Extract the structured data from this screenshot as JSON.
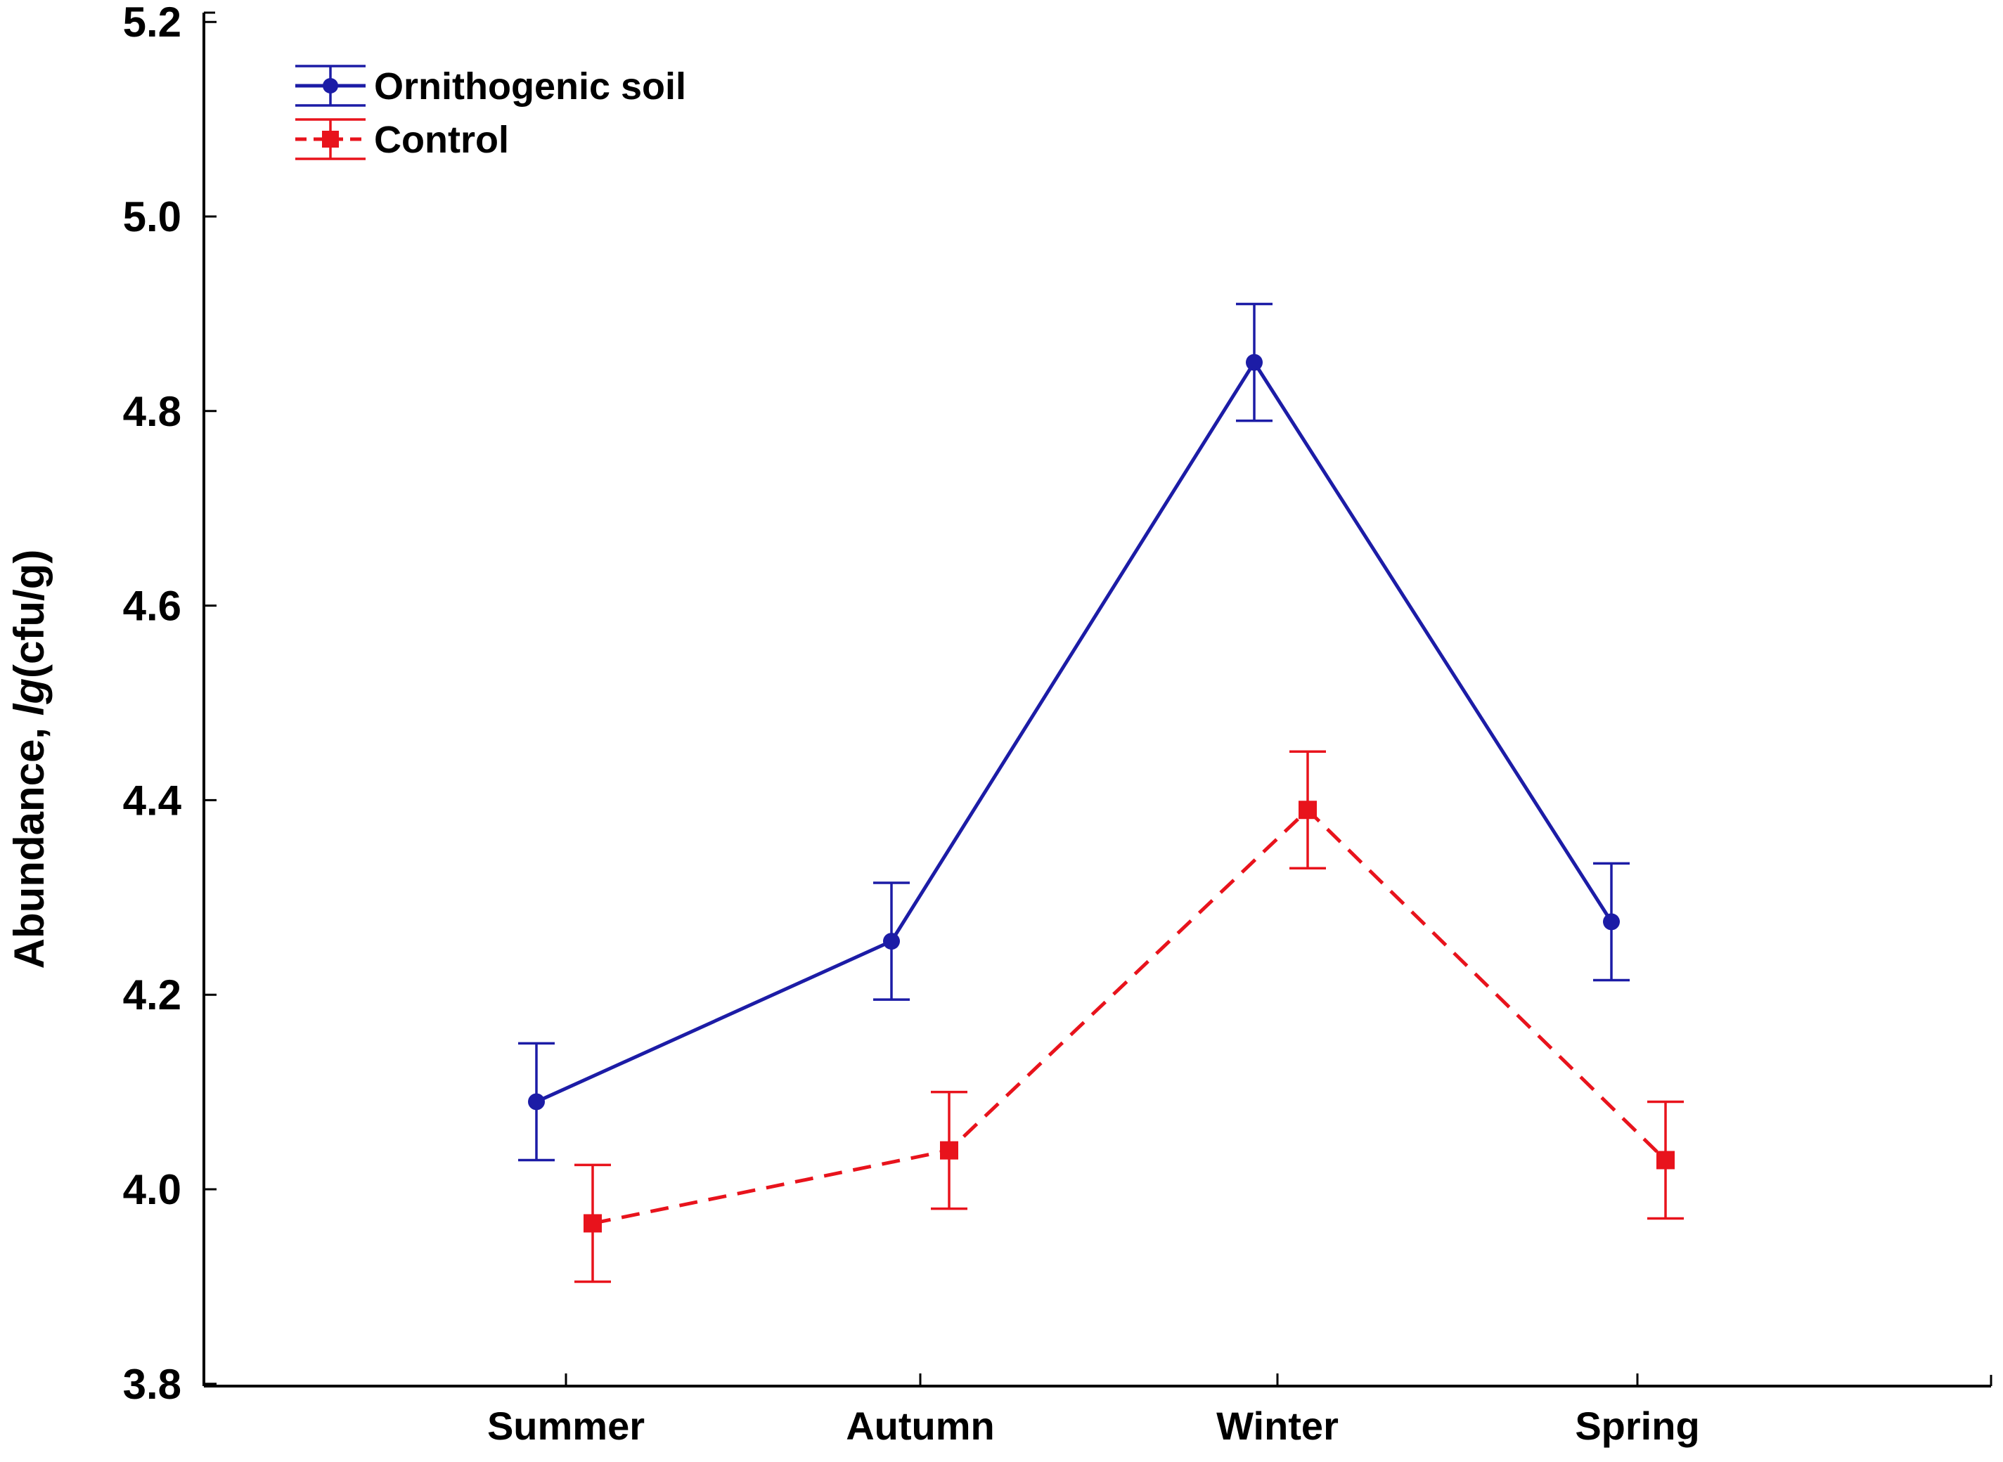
{
  "chart_data": {
    "type": "line",
    "title": "",
    "xlabel": "",
    "ylabel_parts": [
      "Abundance, ",
      "lg",
      "(cfu/g)"
    ],
    "ylim": [
      3.8,
      5.2
    ],
    "yticks": [
      "3.8",
      "4.0",
      "4.2",
      "4.4",
      "4.6",
      "4.8",
      "5.0",
      "5.2"
    ],
    "categories": [
      "Summer",
      "Autumn",
      "Winter",
      "Spring"
    ],
    "grid": false,
    "legend_position": "top-left",
    "series": [
      {
        "name": "Ornithogenic soil",
        "color": "#1c1ca6",
        "marker": "circle",
        "line_style": "solid",
        "values": [
          4.09,
          4.255,
          4.85,
          4.275
        ],
        "error_low": [
          4.03,
          4.195,
          4.79,
          4.215
        ],
        "error_high": [
          4.15,
          4.315,
          4.91,
          4.335
        ]
      },
      {
        "name": "Control",
        "color": "#e8131c",
        "marker": "square",
        "line_style": "dashed",
        "values": [
          3.965,
          4.04,
          4.39,
          4.03
        ],
        "error_low": [
          3.905,
          3.98,
          4.33,
          3.97
        ],
        "error_high": [
          4.025,
          4.1,
          4.45,
          4.09
        ]
      }
    ]
  }
}
